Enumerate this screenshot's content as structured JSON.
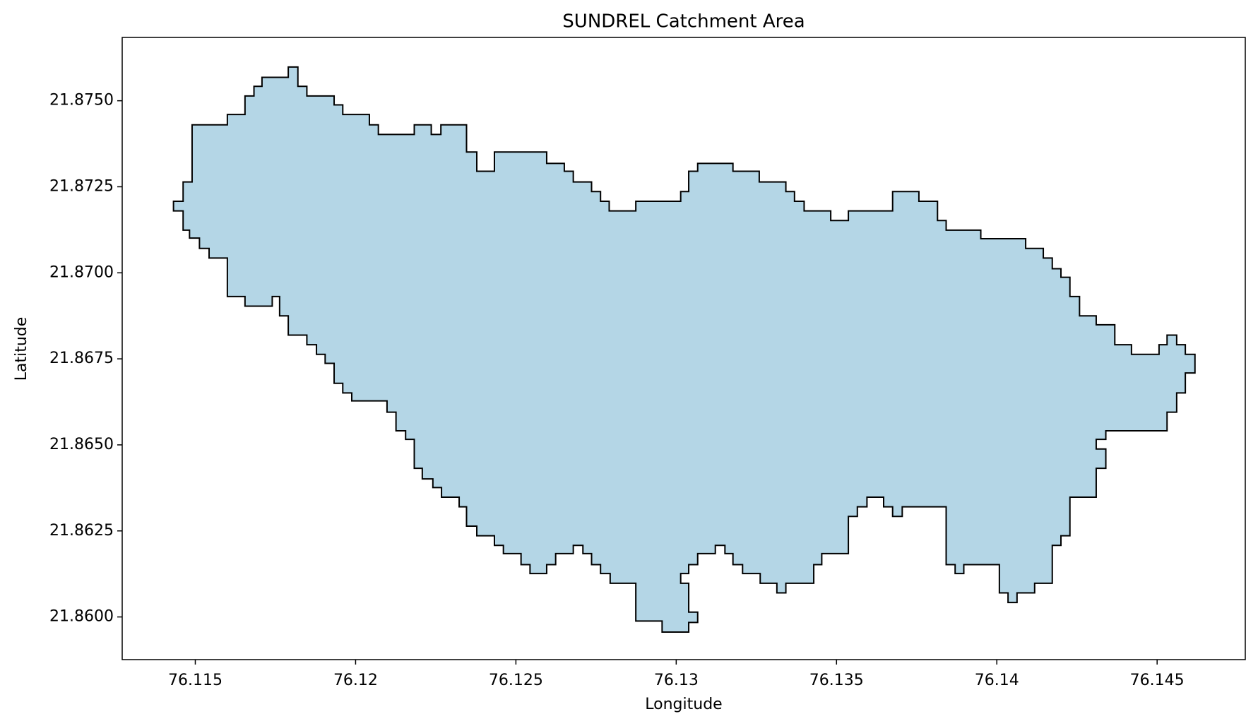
{
  "chart_data": {
    "type": "polygon",
    "title": "SUNDREL Catchment Area",
    "x_label": "Longitude",
    "y_label": "Latitude",
    "fill_color": "#b4d6e6",
    "edge_color": "#000000",
    "xlim": [
      76.11272,
      76.14775
    ],
    "ylim": [
      21.85876,
      21.87684
    ],
    "xticks": [
      76.115,
      76.12,
      76.125,
      76.13,
      76.135,
      76.14,
      76.145
    ],
    "yticks": [
      {
        "value": 21.86,
        "label": "21.8600"
      },
      {
        "value": 21.8625,
        "label": "21.8625"
      },
      {
        "value": 21.865,
        "label": "21.8650"
      },
      {
        "value": 21.8675,
        "label": "21.8675"
      },
      {
        "value": 21.87,
        "label": "21.8700"
      },
      {
        "value": 21.8725,
        "label": "21.8725"
      },
      {
        "value": 21.875,
        "label": "21.8750"
      }
    ],
    "x": [
      76.11432,
      76.11432,
      76.11462,
      76.11462,
      76.11482,
      76.11482,
      76.11513,
      76.11513,
      76.11543,
      76.11543,
      76.116,
      76.116,
      76.11655,
      76.11655,
      76.1174,
      76.1174,
      76.11763,
      76.11763,
      76.1179,
      76.1179,
      76.11848,
      76.11848,
      76.11878,
      76.11878,
      76.11905,
      76.11905,
      76.11933,
      76.11933,
      76.1196,
      76.1196,
      76.11988,
      76.11988,
      76.12098,
      76.12098,
      76.12126,
      76.12126,
      76.12156,
      76.12156,
      76.12183,
      76.12183,
      76.12208,
      76.12208,
      76.12241,
      76.12241,
      76.12268,
      76.12268,
      76.12323,
      76.12323,
      76.12346,
      76.12346,
      76.12378,
      76.12378,
      76.12433,
      76.12433,
      76.12461,
      76.12461,
      76.12516,
      76.12516,
      76.12544,
      76.12544,
      76.12596,
      76.12596,
      76.12624,
      76.12624,
      76.12679,
      76.12679,
      76.12709,
      76.12709,
      76.12736,
      76.12736,
      76.12764,
      76.12764,
      76.12794,
      76.12794,
      76.12874,
      76.12874,
      76.12956,
      76.12956,
      76.13039,
      76.13039,
      76.13067,
      76.13067,
      76.13039,
      76.13039,
      76.13014,
      76.13014,
      76.13039,
      76.13039,
      76.13067,
      76.13067,
      76.13122,
      76.13122,
      76.13152,
      76.13152,
      76.13177,
      76.13177,
      76.13207,
      76.13207,
      76.13262,
      76.13262,
      76.13314,
      76.13314,
      76.13342,
      76.13342,
      76.13429,
      76.13429,
      76.13454,
      76.13454,
      76.13537,
      76.13537,
      76.13565,
      76.13565,
      76.13595,
      76.13595,
      76.13647,
      76.13647,
      76.13675,
      76.13675,
      76.13705,
      76.13705,
      76.13842,
      76.13842,
      76.1387,
      76.1387,
      76.13897,
      76.13897,
      76.14008,
      76.14008,
      76.14035,
      76.14035,
      76.14063,
      76.14063,
      76.14118,
      76.14118,
      76.14173,
      76.14173,
      76.142,
      76.142,
      76.14228,
      76.14228,
      76.1431,
      76.1431,
      76.1434,
      76.1434,
      76.1431,
      76.1431,
      76.1434,
      76.1434,
      76.14531,
      76.14531,
      76.14561,
      76.14561,
      76.14588,
      76.14588,
      76.14618,
      76.14618,
      76.14588,
      76.14588,
      76.14561,
      76.14561,
      76.14531,
      76.14531,
      76.14506,
      76.14506,
      76.1442,
      76.1442,
      76.14368,
      76.14368,
      76.1431,
      76.1431,
      76.14258,
      76.14258,
      76.14228,
      76.14228,
      76.142,
      76.142,
      76.14173,
      76.14173,
      76.14145,
      76.14145,
      76.1409,
      76.1409,
      76.1395,
      76.1395,
      76.13842,
      76.13842,
      76.13815,
      76.13815,
      76.13757,
      76.13757,
      76.13675,
      76.13675,
      76.13537,
      76.13537,
      76.13482,
      76.13482,
      76.13399,
      76.13399,
      76.13369,
      76.13369,
      76.13342,
      76.13342,
      76.13259,
      76.13259,
      76.13177,
      76.13177,
      76.13067,
      76.13067,
      76.13039,
      76.13039,
      76.13014,
      76.13014,
      76.12874,
      76.12874,
      76.12791,
      76.12791,
      76.12764,
      76.12764,
      76.12736,
      76.12736,
      76.12679,
      76.12679,
      76.12651,
      76.12651,
      76.12596,
      76.12596,
      76.12433,
      76.12433,
      76.12378,
      76.12378,
      76.12346,
      76.12346,
      76.12266,
      76.12266,
      76.12236,
      76.12236,
      76.12183,
      76.12183,
      76.12071,
      76.12071,
      76.12043,
      76.12043,
      76.1196,
      76.1196,
      76.11933,
      76.11933,
      76.11848,
      76.11848,
      76.1182,
      76.1182,
      76.1179,
      76.1179,
      76.11708,
      76.11708,
      76.11683,
      76.11683,
      76.11655,
      76.11655,
      76.116,
      76.116,
      76.1149,
      76.1149,
      76.11462,
      76.11462
    ],
    "y": [
      21.87208,
      21.8718,
      21.8718,
      21.87124,
      21.87124,
      21.87101,
      21.87101,
      21.87071,
      21.87071,
      21.87043,
      21.87043,
      21.86931,
      21.86931,
      21.86903,
      21.86903,
      21.86931,
      21.86931,
      21.86875,
      21.86875,
      21.86819,
      21.86819,
      21.86791,
      21.86791,
      21.86763,
      21.86763,
      21.86737,
      21.86737,
      21.86679,
      21.86679,
      21.86651,
      21.86651,
      21.86628,
      21.86628,
      21.86595,
      21.86595,
      21.86541,
      21.86541,
      21.86516,
      21.86516,
      21.86432,
      21.86432,
      21.86401,
      21.86401,
      21.86376,
      21.86376,
      21.86348,
      21.86348,
      21.8632,
      21.8632,
      21.86264,
      21.86264,
      21.86236,
      21.86236,
      21.86208,
      21.86208,
      21.86184,
      21.86184,
      21.86152,
      21.86152,
      21.86126,
      21.86126,
      21.86152,
      21.86152,
      21.86184,
      21.86184,
      21.86208,
      21.86208,
      21.86184,
      21.86184,
      21.86152,
      21.86152,
      21.86126,
      21.86126,
      21.86098,
      21.86098,
      21.85988,
      21.85988,
      21.85956,
      21.85956,
      21.85984,
      21.85984,
      21.86014,
      21.86014,
      21.86098,
      21.86098,
      21.86126,
      21.86126,
      21.86152,
      21.86152,
      21.86184,
      21.86184,
      21.86208,
      21.86208,
      21.86184,
      21.86184,
      21.86152,
      21.86152,
      21.86126,
      21.86126,
      21.86098,
      21.86098,
      21.8607,
      21.8607,
      21.86098,
      21.86098,
      21.86152,
      21.86152,
      21.86184,
      21.86184,
      21.86292,
      21.86292,
      21.8632,
      21.8632,
      21.86348,
      21.86348,
      21.8632,
      21.8632,
      21.86292,
      21.86292,
      21.8632,
      21.8632,
      21.86152,
      21.86152,
      21.86126,
      21.86126,
      21.86152,
      21.86152,
      21.8607,
      21.8607,
      21.86042,
      21.86042,
      21.8607,
      21.8607,
      21.86098,
      21.86098,
      21.86208,
      21.86208,
      21.86236,
      21.86236,
      21.86348,
      21.86348,
      21.86432,
      21.86432,
      21.86488,
      21.86488,
      21.86516,
      21.86516,
      21.86541,
      21.86541,
      21.86595,
      21.86595,
      21.86651,
      21.86651,
      21.86709,
      21.86709,
      21.86763,
      21.86763,
      21.86791,
      21.86791,
      21.86819,
      21.86819,
      21.86791,
      21.86791,
      21.86763,
      21.86763,
      21.86791,
      21.86791,
      21.86849,
      21.86849,
      21.86875,
      21.86875,
      21.86931,
      21.86931,
      21.86987,
      21.86987,
      21.87012,
      21.87012,
      21.87043,
      21.87043,
      21.87071,
      21.87071,
      21.87099,
      21.87099,
      21.87124,
      21.87124,
      21.87152,
      21.87152,
      21.87208,
      21.87208,
      21.87236,
      21.87236,
      21.8718,
      21.8718,
      21.87152,
      21.87152,
      21.8718,
      21.8718,
      21.87208,
      21.87208,
      21.87236,
      21.87236,
      21.87264,
      21.87264,
      21.87295,
      21.87295,
      21.87318,
      21.87318,
      21.87295,
      21.87295,
      21.87236,
      21.87236,
      21.87208,
      21.87208,
      21.8718,
      21.8718,
      21.87208,
      21.87208,
      21.87236,
      21.87236,
      21.87264,
      21.87264,
      21.87295,
      21.87295,
      21.87318,
      21.87318,
      21.87351,
      21.87351,
      21.87295,
      21.87295,
      21.87351,
      21.87351,
      21.8743,
      21.8743,
      21.87402,
      21.87402,
      21.8743,
      21.8743,
      21.87402,
      21.87402,
      21.8743,
      21.8743,
      21.8746,
      21.8746,
      21.87488,
      21.87488,
      21.87514,
      21.87514,
      21.87542,
      21.87542,
      21.87598,
      21.87598,
      21.87568,
      21.87568,
      21.87542,
      21.87542,
      21.87514,
      21.87514,
      21.8746,
      21.8746,
      21.8743,
      21.8743,
      21.87264,
      21.87264,
      21.87208
    ]
  }
}
